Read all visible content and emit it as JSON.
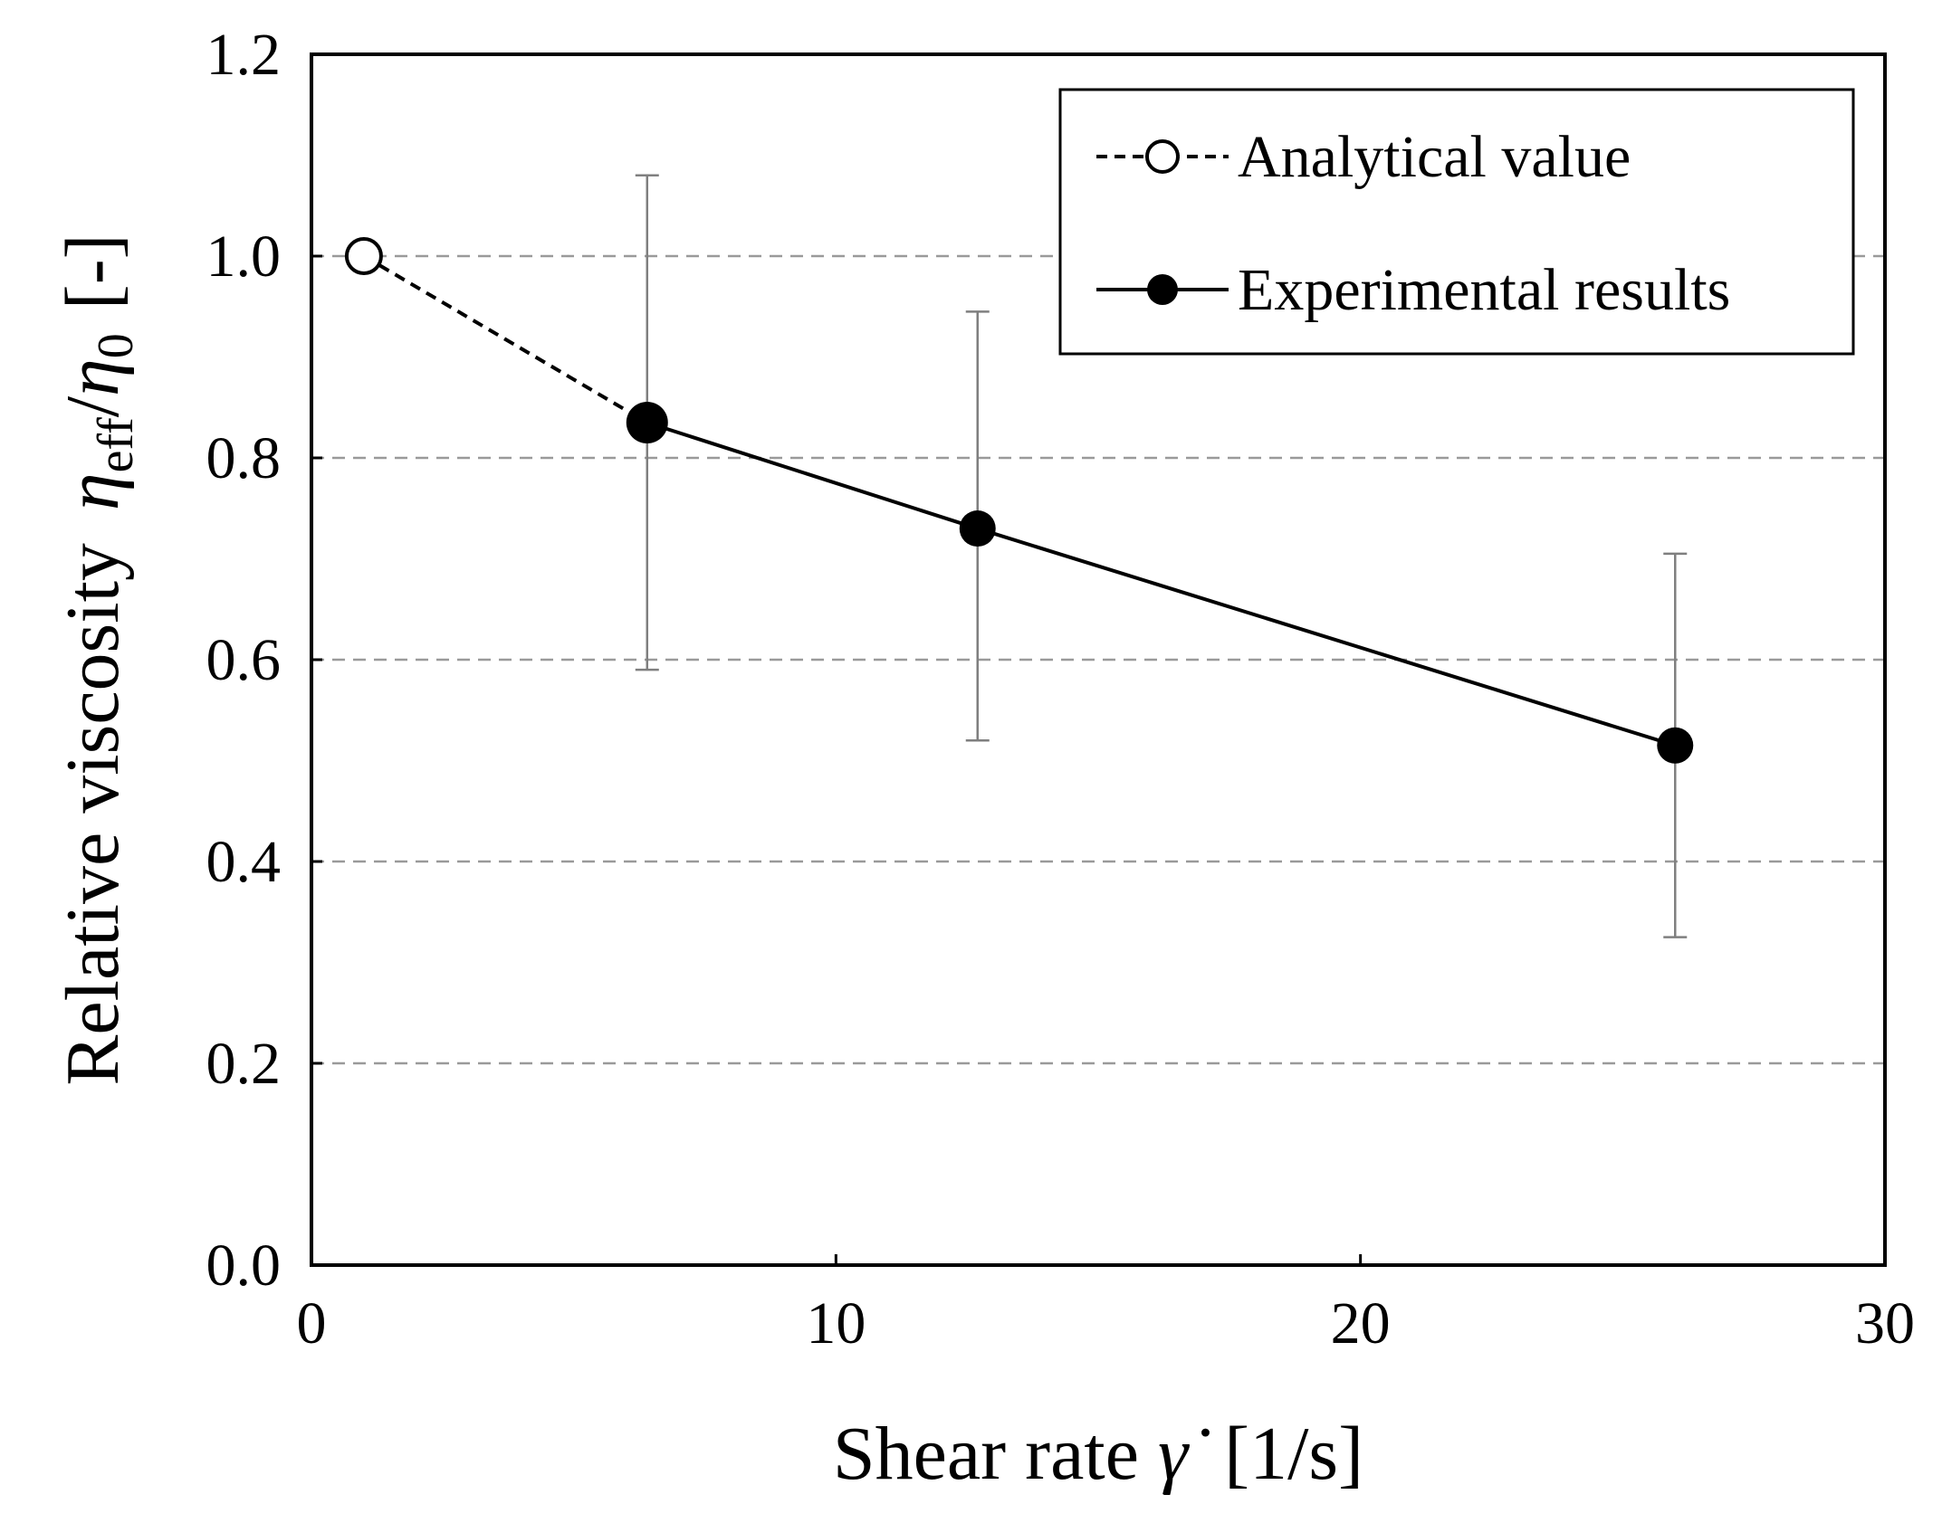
{
  "chart_data": {
    "type": "line",
    "xlabel": {
      "pre": "Shear rate ",
      "symbol": "γ̇",
      "unit": "[1/s]"
    },
    "ylabel": {
      "pre": "Relative viscosity",
      "eta1": "η",
      "sub1": "eff",
      "slash": "/",
      "eta2": "η",
      "sub2": "0",
      "unit": "[-]"
    },
    "xlim": [
      0,
      30
    ],
    "ylim": [
      0,
      1.2
    ],
    "xticks": [
      0,
      10,
      20,
      30
    ],
    "xtick_labels": [
      "0",
      "10",
      "20",
      "30"
    ],
    "yticks": [
      0,
      0.2,
      0.4,
      0.6,
      0.8,
      1.0,
      1.2
    ],
    "ytick_labels": [
      "0.0",
      "0.2",
      "0.4",
      "0.6",
      "0.8",
      "1.0",
      "1.2"
    ],
    "grid": "horizontal dashed",
    "legend_position": "top-right",
    "series": [
      {
        "name": "Analytical value",
        "line_style": "dashed",
        "marker": "open-circle",
        "x": [
          1.0,
          6.4
        ],
        "y": [
          1.0,
          0.835
        ]
      },
      {
        "name": "Experimental results",
        "line_style": "solid",
        "marker": "filled-circle",
        "x": [
          6.4,
          12.7,
          26.0
        ],
        "y": [
          0.835,
          0.73,
          0.515
        ],
        "error_low": [
          0.59,
          0.52,
          0.325
        ],
        "error_high": [
          1.08,
          0.945,
          0.705
        ]
      }
    ],
    "colors": {
      "line": "#000000",
      "grid": "#9a9a9a",
      "error_bar": "#7f7f7f",
      "open_marker_fill": "#ffffff"
    }
  }
}
